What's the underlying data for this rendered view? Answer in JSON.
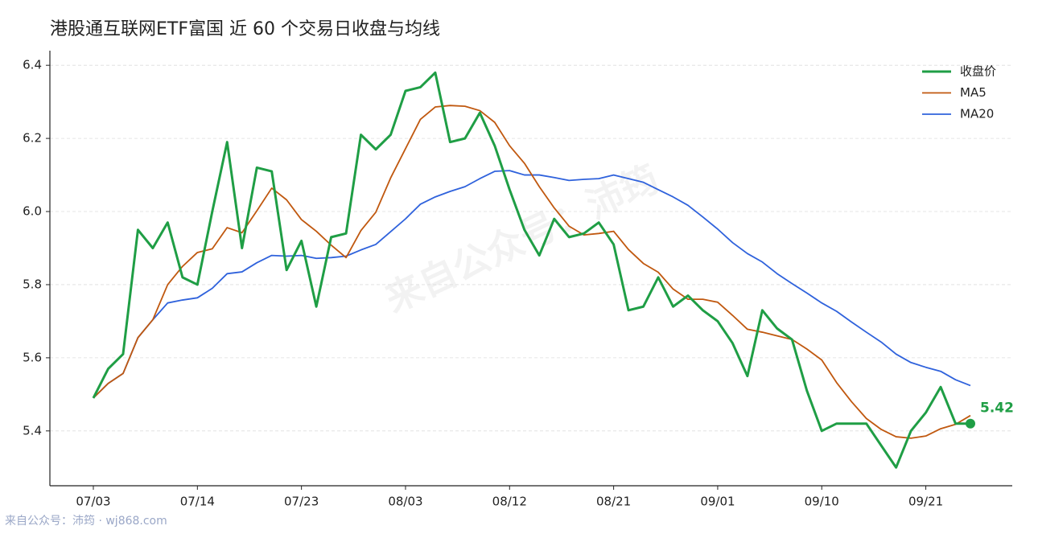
{
  "chart_data": {
    "type": "line",
    "title": "港股通互联网ETF富国 近 60 个交易日收盘与均线",
    "watermark": "来自公众号：沛筠",
    "footer": "来自公众号：沛筠 · wj868.com",
    "categories": [
      "07/03",
      null,
      null,
      null,
      null,
      null,
      null,
      "07/14",
      null,
      null,
      null,
      null,
      null,
      null,
      "07/23",
      null,
      null,
      null,
      null,
      null,
      null,
      "08/03",
      null,
      null,
      null,
      null,
      null,
      null,
      "08/12",
      null,
      null,
      null,
      null,
      null,
      null,
      "08/21",
      null,
      null,
      null,
      null,
      null,
      null,
      "09/01",
      null,
      null,
      null,
      null,
      null,
      null,
      "09/10",
      null,
      null,
      null,
      null,
      null,
      null,
      "09/21",
      null,
      null,
      null
    ],
    "series": [
      {
        "name": "收盘价",
        "color": "#1f9e45",
        "values": [
          5.49,
          5.57,
          5.61,
          5.95,
          5.9,
          5.97,
          5.82,
          5.8,
          6.0,
          6.19,
          5.9,
          6.12,
          6.11,
          5.84,
          5.92,
          5.74,
          5.93,
          5.94,
          6.21,
          6.17,
          6.21,
          6.33,
          6.34,
          6.38,
          6.19,
          6.2,
          6.27,
          6.18,
          6.06,
          5.95,
          5.88,
          5.98,
          5.93,
          5.94,
          5.97,
          5.91,
          5.73,
          5.74,
          5.82,
          5.74,
          5.77,
          5.73,
          5.7,
          5.64,
          5.55,
          5.73,
          5.68,
          5.65,
          5.51,
          5.4,
          5.42,
          5.42,
          5.42,
          5.36,
          5.3,
          5.4,
          5.45,
          5.52,
          5.42,
          5.42
        ]
      },
      {
        "name": "MA5",
        "color": "#c0580f",
        "values": [
          5.49,
          5.53,
          5.557,
          5.655,
          5.704,
          5.8,
          5.85,
          5.888,
          5.898,
          5.956,
          5.942,
          6.002,
          6.064,
          6.032,
          5.978,
          5.946,
          5.908,
          5.874,
          5.948,
          5.998,
          6.092,
          6.172,
          6.252,
          6.286,
          6.29,
          6.288,
          6.276,
          6.244,
          6.18,
          6.132,
          6.068,
          6.01,
          5.96,
          5.936,
          5.94,
          5.946,
          5.896,
          5.858,
          5.834,
          5.788,
          5.76,
          5.76,
          5.752,
          5.716,
          5.678,
          5.67,
          5.66,
          5.65,
          5.624,
          5.594,
          5.532,
          5.48,
          5.434,
          5.404,
          5.384,
          5.38,
          5.386,
          5.406,
          5.418,
          5.442
        ]
      },
      {
        "name": "MA20",
        "color": "#2f62dc",
        "values": [
          5.49,
          5.53,
          5.557,
          5.655,
          5.704,
          5.75,
          5.758,
          5.764,
          5.79,
          5.83,
          5.835,
          5.86,
          5.88,
          5.878,
          5.88,
          5.872,
          5.874,
          5.878,
          5.895,
          5.91,
          5.945,
          5.98,
          6.02,
          6.04,
          6.055,
          6.068,
          6.09,
          6.11,
          6.112,
          6.1,
          6.1,
          6.093,
          6.085,
          6.088,
          6.09,
          6.1,
          6.09,
          6.08,
          6.06,
          6.04,
          6.017,
          5.985,
          5.952,
          5.915,
          5.885,
          5.862,
          5.83,
          5.803,
          5.777,
          5.75,
          5.727,
          5.698,
          5.67,
          5.643,
          5.61,
          5.587,
          5.574,
          5.563,
          5.54,
          5.524
        ]
      }
    ],
    "ylim": [
      5.25,
      6.44
    ],
    "yticks": [
      5.4,
      5.6,
      5.8,
      {
        "value": 6.0,
        "label": "6.0"
      },
      6.2,
      6.4
    ],
    "grid": true,
    "legend": "upper-right"
  }
}
